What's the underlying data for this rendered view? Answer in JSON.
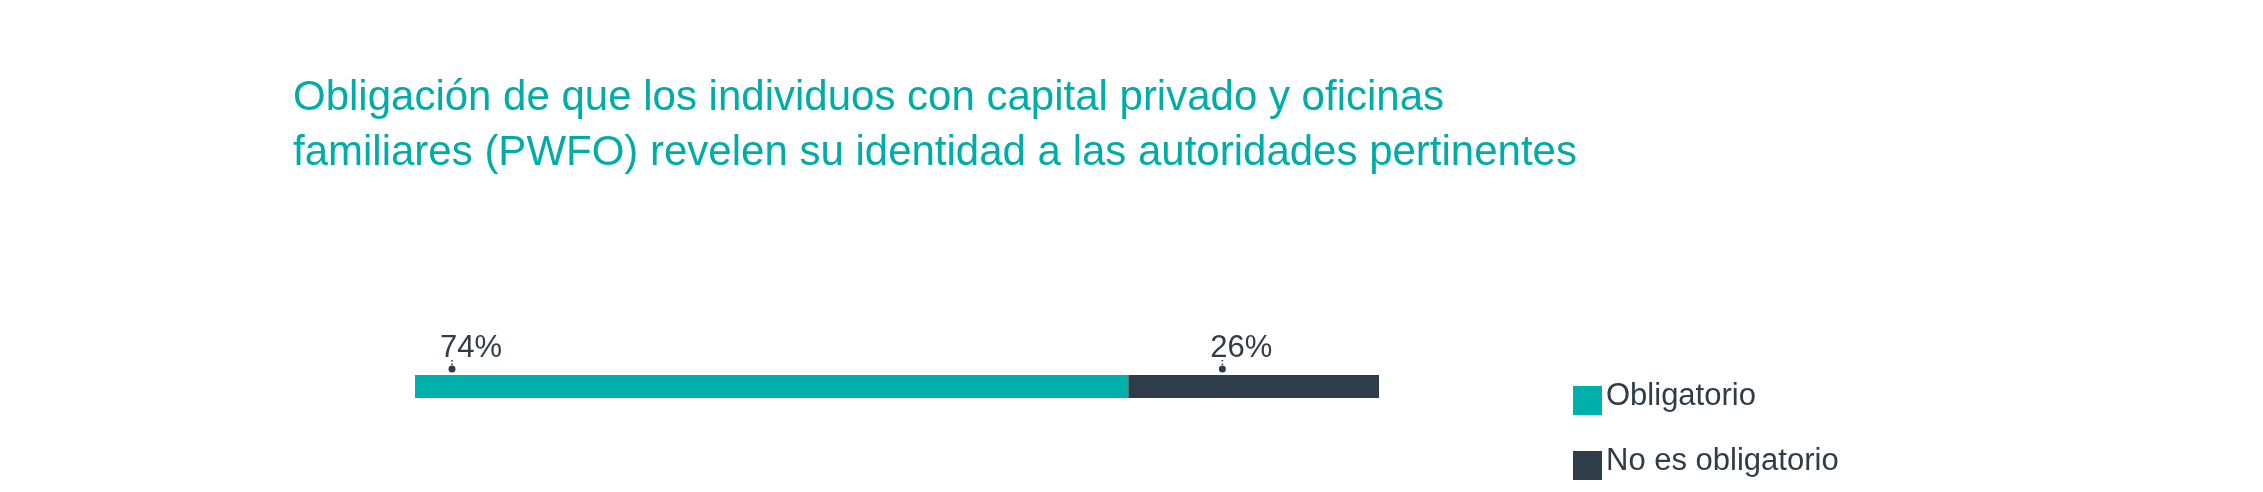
{
  "chart_data": {
    "type": "bar",
    "title": "Obligación de que los individuos con capital privado y oficinas familiares (PWFO) revelen su identidad a las autoridades pertinentes",
    "categories": [
      null
    ],
    "orientation": "horizontal",
    "stacked": true,
    "tick_labels": false,
    "legend": "right",
    "series": [
      {
        "name": "Obligatorio",
        "color": "#00b0aa",
        "values": [
          74
        ],
        "value_labels": [
          "74%"
        ]
      },
      {
        "name": "No es obligatorio",
        "color": "#2e3d48",
        "values": [
          26
        ],
        "value_labels": [
          "26%"
        ]
      }
    ]
  }
}
